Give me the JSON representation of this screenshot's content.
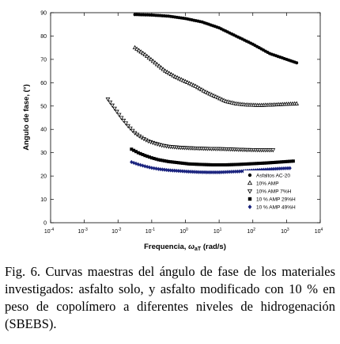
{
  "caption": "Fig. 6. Curvas maestras del ángulo de fase de los materiales investigados: asfalto solo, y asfalto modificado con 10 % en peso de copolímero a diferentes niveles de hidrogenación (SBEBS).",
  "chart_data": {
    "type": "scatter",
    "xlabel": "Frequencia, ωaT (rad/s)",
    "xlabel_main": "Frequencia, ",
    "xlabel_omega": "ω",
    "xlabel_sub": "aT",
    "xlabel_unit": " (rad/s)",
    "ylabel": "Angulo de fase, (°)",
    "xscale": "log",
    "xlim": [
      0.0001,
      10000
    ],
    "ylim": [
      0,
      90
    ],
    "xticks": [
      {
        "value": 0.0001,
        "base": "10",
        "exp": "-4"
      },
      {
        "value": 0.001,
        "base": "10",
        "exp": "-3"
      },
      {
        "value": 0.01,
        "base": "10",
        "exp": "-2"
      },
      {
        "value": 0.1,
        "base": "10",
        "exp": "-1"
      },
      {
        "value": 1,
        "base": "10",
        "exp": "0"
      },
      {
        "value": 10,
        "base": "10",
        "exp": "1"
      },
      {
        "value": 100,
        "base": "10",
        "exp": "2"
      },
      {
        "value": 1000,
        "base": "10",
        "exp": "3"
      },
      {
        "value": 10000,
        "base": "10",
        "exp": "4"
      }
    ],
    "yticks": [
      0,
      10,
      20,
      30,
      40,
      50,
      60,
      70,
      80,
      90
    ],
    "grid": false,
    "legend_position": "bottom-right",
    "series": [
      {
        "name": "Asfaltos AC-20",
        "marker": "circle",
        "color": "#000000",
        "points": [
          [
            -1.5,
            89.2
          ],
          [
            -1.0,
            89.0
          ],
          [
            -0.5,
            88.5
          ],
          [
            0.0,
            87.5
          ],
          [
            0.5,
            86.0
          ],
          [
            1.0,
            83.5
          ],
          [
            1.5,
            80.0
          ],
          [
            2.0,
            76.5
          ],
          [
            2.5,
            72.5
          ],
          [
            3.0,
            70.0
          ],
          [
            3.3,
            68.5
          ]
        ]
      },
      {
        "name": "10% AMP",
        "marker": "triangle-up",
        "color": "#000000",
        "points": [
          [
            -1.5,
            75.0
          ],
          [
            -1.2,
            72.0
          ],
          [
            -0.9,
            68.5
          ],
          [
            -0.6,
            65.0
          ],
          [
            -0.3,
            62.5
          ],
          [
            0.0,
            60.5
          ],
          [
            0.3,
            58.5
          ],
          [
            0.6,
            56.0
          ],
          [
            0.9,
            54.0
          ],
          [
            1.2,
            52.0
          ],
          [
            1.5,
            51.0
          ],
          [
            1.8,
            50.5
          ],
          [
            2.2,
            50.3
          ],
          [
            2.6,
            50.5
          ],
          [
            3.0,
            50.8
          ],
          [
            3.3,
            51.0
          ]
        ]
      },
      {
        "name": "10% AMP 7%H",
        "marker": "triangle-down",
        "color": "#000000",
        "points": [
          [
            -2.3,
            53.0
          ],
          [
            -2.1,
            49.0
          ],
          [
            -1.9,
            45.0
          ],
          [
            -1.7,
            41.5
          ],
          [
            -1.5,
            38.5
          ],
          [
            -1.3,
            36.5
          ],
          [
            -1.1,
            35.0
          ],
          [
            -0.9,
            34.0
          ],
          [
            -0.7,
            33.2
          ],
          [
            -0.5,
            32.7
          ],
          [
            -0.2,
            32.3
          ],
          [
            0.2,
            32.0
          ],
          [
            0.6,
            31.8
          ],
          [
            1.0,
            31.7
          ],
          [
            1.4,
            31.5
          ],
          [
            1.8,
            31.3
          ],
          [
            2.2,
            31.2
          ],
          [
            2.6,
            31.2
          ]
        ]
      },
      {
        "name": "10 % AMP 29%H",
        "marker": "square",
        "color": "#000000",
        "points": [
          [
            -1.6,
            31.5
          ],
          [
            -1.4,
            30.0
          ],
          [
            -1.2,
            28.8
          ],
          [
            -1.0,
            27.8
          ],
          [
            -0.8,
            27.0
          ],
          [
            -0.5,
            26.2
          ],
          [
            -0.2,
            25.7
          ],
          [
            0.1,
            25.2
          ],
          [
            0.4,
            25.0
          ],
          [
            0.8,
            24.8
          ],
          [
            1.2,
            24.8
          ],
          [
            1.6,
            25.0
          ],
          [
            2.0,
            25.3
          ],
          [
            2.4,
            25.6
          ],
          [
            2.8,
            26.0
          ],
          [
            3.2,
            26.4
          ]
        ]
      },
      {
        "name": "10 % AMP 49%H",
        "marker": "diamond",
        "color": "#1a237e",
        "points": [
          [
            -1.6,
            26.0
          ],
          [
            -1.4,
            25.0
          ],
          [
            -1.2,
            24.2
          ],
          [
            -1.0,
            23.5
          ],
          [
            -0.8,
            23.0
          ],
          [
            -0.5,
            22.5
          ],
          [
            -0.2,
            22.2
          ],
          [
            0.1,
            21.9
          ],
          [
            0.4,
            21.7
          ],
          [
            0.7,
            21.6
          ],
          [
            1.0,
            21.6
          ],
          [
            1.3,
            21.8
          ],
          [
            1.6,
            22.0
          ],
          [
            1.9,
            22.3
          ],
          [
            2.2,
            22.6
          ],
          [
            2.5,
            22.9
          ],
          [
            2.8,
            23.2
          ],
          [
            3.1,
            23.4
          ]
        ]
      }
    ]
  }
}
